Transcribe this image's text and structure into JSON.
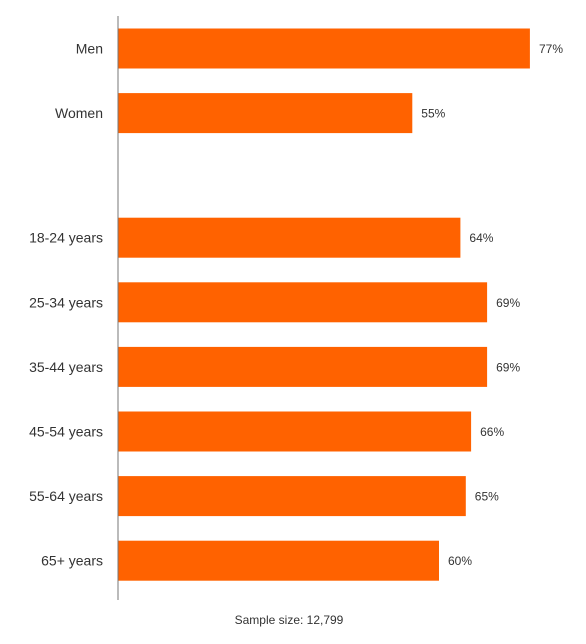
{
  "chart_data": {
    "type": "bar",
    "orientation": "horizontal",
    "title": "",
    "xlabel": "",
    "ylabel": "",
    "unit": "%",
    "xlim": [
      0,
      100
    ],
    "grid": false,
    "legend": "none",
    "bar_color": "#FF6200",
    "groups": [
      {
        "categories": [
          "Men",
          "Women"
        ],
        "values": [
          77,
          55
        ],
        "labels": [
          "77%",
          "55%"
        ]
      },
      {
        "categories": [
          "18-24 years",
          "25-34 years",
          "35-44 years",
          "45-54 years",
          "55-64 years",
          "65+ years"
        ],
        "values": [
          64,
          69,
          69,
          66,
          65,
          60
        ],
        "labels": [
          "64%",
          "69%",
          "69%",
          "66%",
          "65%",
          "60%"
        ]
      }
    ],
    "footnote": "Sample size: 12,799"
  }
}
